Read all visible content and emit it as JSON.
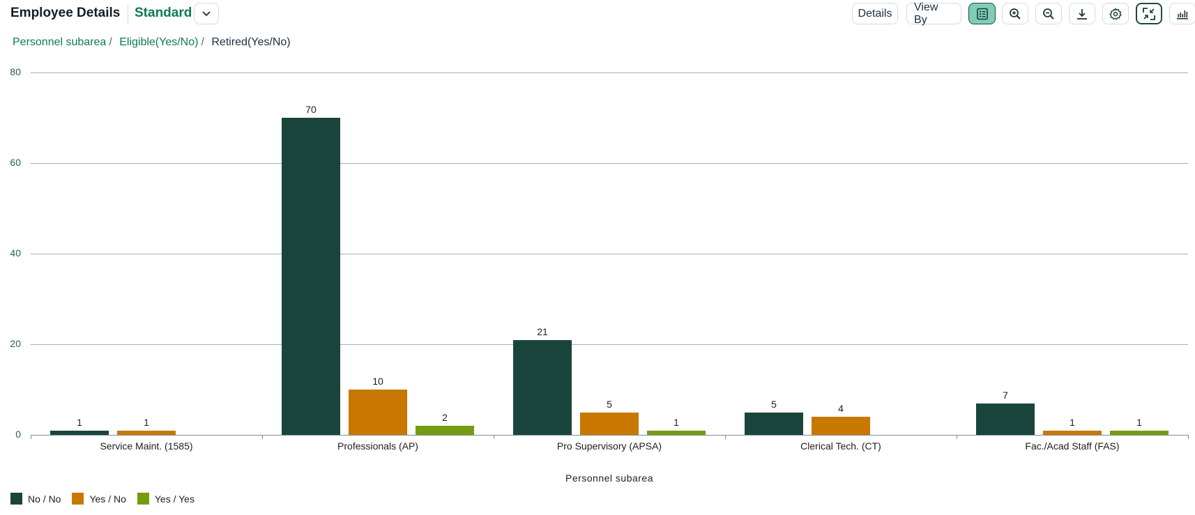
{
  "header": {
    "title": "Employee Details",
    "variant": "Standard",
    "variant_dropdown_icon": "chevron-down-icon"
  },
  "toolbar": {
    "details_label": "Details",
    "view_by_label": "View By",
    "icons": [
      "list-table-icon",
      "zoom-in-icon",
      "zoom-out-icon",
      "download-icon",
      "settings-gear-icon",
      "exit-fullscreen-icon",
      "bar-chart-icon"
    ]
  },
  "breadcrumb": {
    "items": [
      {
        "label": "Personnel subarea",
        "link": true
      },
      {
        "label": "Eligible(Yes/No)",
        "link": true
      },
      {
        "label": "Retired(Yes/No)",
        "link": false
      }
    ],
    "separator": "/"
  },
  "colors": {
    "no_no": "#1a453c",
    "yes_no": "#c87800",
    "yes_yes": "#759b12",
    "accent": "#0e7a50"
  },
  "chart_data": {
    "type": "bar",
    "title": "Employee Details",
    "xlabel": "Personnel subarea",
    "ylabel": "",
    "ylim": [
      0,
      80
    ],
    "yticks": [
      0,
      20,
      40,
      60,
      80
    ],
    "grid": true,
    "legend_position": "bottom-left",
    "categories": [
      "Service Maint. (1585)",
      "Professionals (AP)",
      "Pro Supervisory (APSA)",
      "Clerical Tech. (CT)",
      "Fac./Acad Staff (FAS)"
    ],
    "series": [
      {
        "name": "No / No",
        "color": "#1a453c",
        "values": [
          1,
          70,
          21,
          5,
          7
        ]
      },
      {
        "name": "Yes / No",
        "color": "#c87800",
        "values": [
          1,
          10,
          5,
          4,
          1
        ]
      },
      {
        "name": "Yes / Yes",
        "color": "#759b12",
        "values": [
          null,
          2,
          1,
          null,
          1
        ]
      }
    ]
  }
}
